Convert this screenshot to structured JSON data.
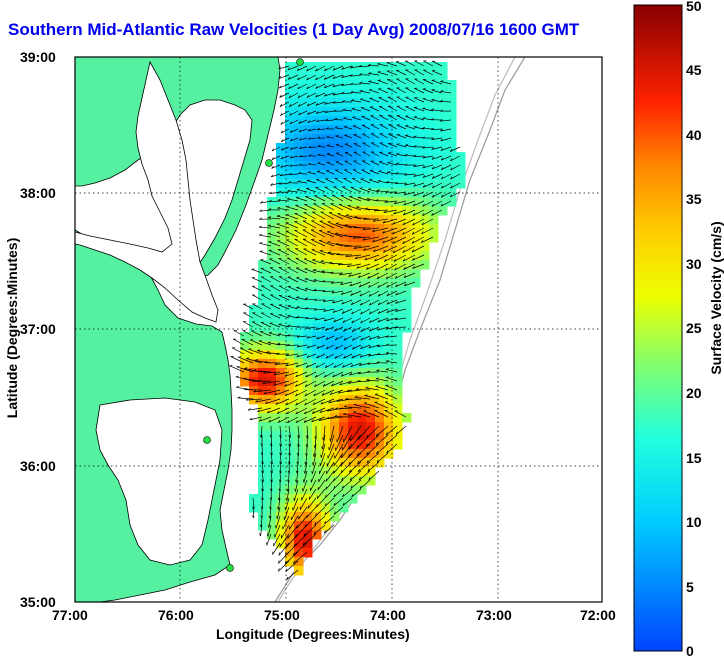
{
  "title": "Southern Mid-Atlantic Raw Velocities (1 Day Avg) 2008/07/16 1600 GMT",
  "xlabel": "Longitude (Degrees:Minutes)",
  "ylabel": "Latitude (Degrees:Minutes)",
  "x_ticks": [
    "77:00",
    "76:00",
    "75:00",
    "74:00",
    "73:00",
    "72:00"
  ],
  "y_ticks": [
    "39:00",
    "38:00",
    "37:00",
    "36:00",
    "35:00"
  ],
  "colorbar": {
    "label": "Surface Velocity (cm/s)",
    "ticks": [
      "0",
      "5",
      "10",
      "15",
      "20",
      "25",
      "30",
      "35",
      "40",
      "45",
      "50"
    ],
    "range": [
      0,
      50
    ]
  },
  "map": {
    "lon_range": [
      -77,
      -72
    ],
    "lat_range": [
      35,
      39
    ],
    "land_color": "#55f0a0",
    "water_color": "#ffffff",
    "station_color": "#22dd44"
  }
}
